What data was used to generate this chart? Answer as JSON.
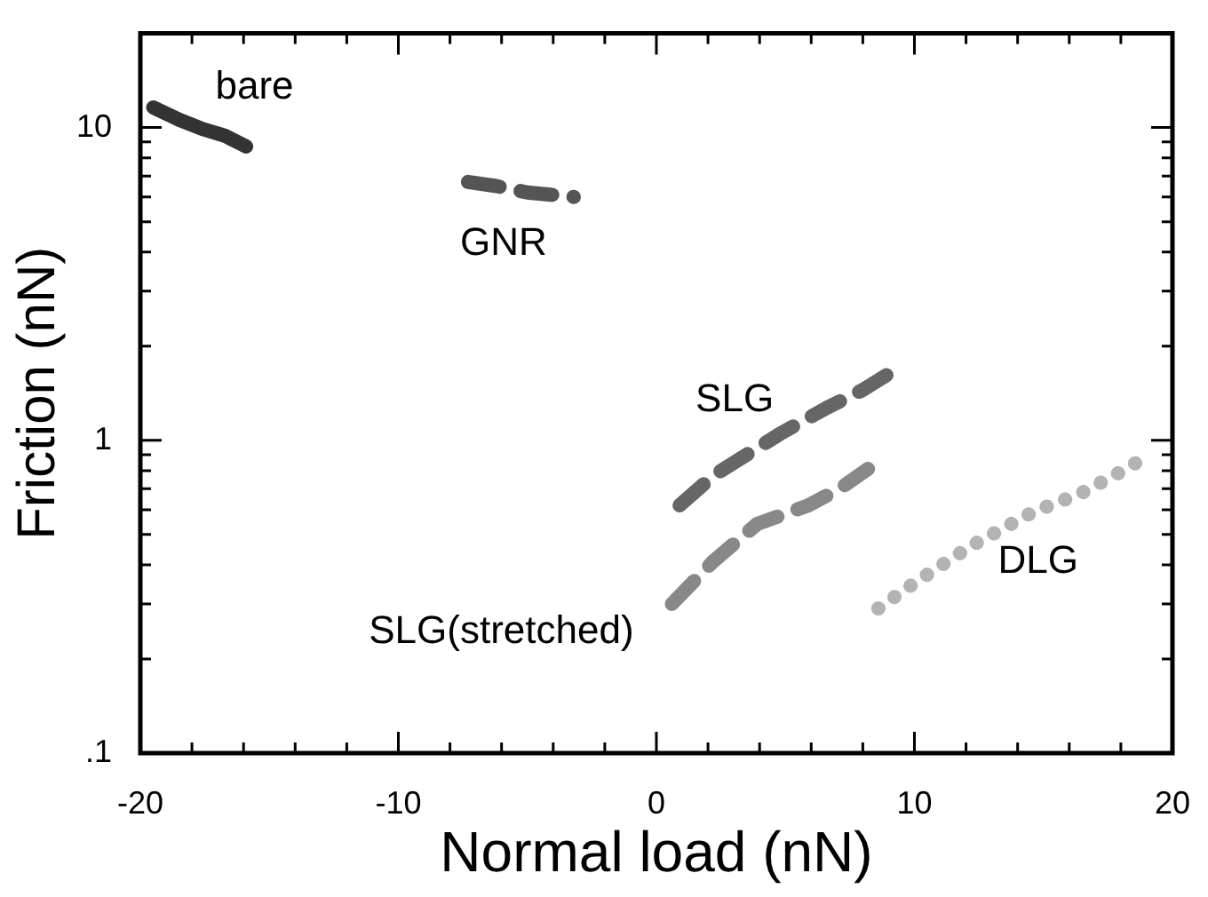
{
  "chart_data": {
    "type": "line",
    "xlabel": "Normal load (nN)",
    "ylabel": "Friction (nN)",
    "log": "y",
    "grid": false,
    "legend": false,
    "marker": "none",
    "xlim": [
      -20,
      20
    ],
    "ylim": [
      0.1,
      20
    ],
    "xticks": [
      -20,
      {
        "value": -18,
        "label": null
      },
      {
        "value": -16,
        "label": null
      },
      {
        "value": -14,
        "label": null
      },
      {
        "value": -12,
        "label": null
      },
      -10,
      {
        "value": -8,
        "label": null
      },
      {
        "value": -6,
        "label": null
      },
      {
        "value": -4,
        "label": null
      },
      {
        "value": -2,
        "label": null
      },
      0,
      {
        "value": 2,
        "label": null
      },
      {
        "value": 4,
        "label": null
      },
      {
        "value": 6,
        "label": null
      },
      {
        "value": 8,
        "label": null
      },
      10,
      {
        "value": 12,
        "label": null
      },
      {
        "value": 14,
        "label": null
      },
      {
        "value": 16,
        "label": null
      },
      {
        "value": 18,
        "label": null
      },
      20
    ],
    "yticks": [
      {
        "value": 0.1,
        "label": ".1"
      },
      {
        "value": 0.2,
        "label": null
      },
      {
        "value": 0.3,
        "label": null
      },
      {
        "value": 0.4,
        "label": null
      },
      {
        "value": 0.5,
        "label": null
      },
      {
        "value": 0.6,
        "label": null
      },
      {
        "value": 0.7,
        "label": null
      },
      {
        "value": 0.8,
        "label": null
      },
      {
        "value": 0.9,
        "label": null
      },
      1,
      {
        "value": 2,
        "label": null
      },
      {
        "value": 3,
        "label": null
      },
      {
        "value": 4,
        "label": null
      },
      {
        "value": 5,
        "label": null
      },
      {
        "value": 6,
        "label": null
      },
      {
        "value": 7,
        "label": null
      },
      {
        "value": 8,
        "label": null
      },
      {
        "value": 9,
        "label": null
      },
      10
    ],
    "series": [
      {
        "name": "bare",
        "color": "#333333",
        "line_style": "solid",
        "x": [
          -19.5,
          -18.5,
          -17.6,
          -16.7,
          -15.9
        ],
        "values": [
          11.6,
          10.6,
          9.9,
          9.4,
          8.7
        ]
      },
      {
        "name": "GNR",
        "color": "#555555",
        "line_style": "dashed",
        "x": [
          -7.3,
          -6.2,
          -5.0,
          -4.1,
          -3.2
        ],
        "values": [
          6.7,
          6.5,
          6.2,
          6.1,
          6.0
        ]
      },
      {
        "name": "SLG",
        "color": "#666666",
        "line_style": "dashed",
        "x": [
          0.9,
          2.2,
          3.5,
          4.8,
          6.6,
          8.0,
          9.2
        ],
        "values": [
          0.62,
          0.77,
          0.9,
          1.05,
          1.27,
          1.45,
          1.67
        ]
      },
      {
        "name": "SLG(stretched)",
        "color": "#888888",
        "line_style": "dashed",
        "x": [
          0.6,
          2.2,
          3.9,
          5.9,
          7.1,
          8.2
        ],
        "values": [
          0.3,
          0.41,
          0.54,
          0.62,
          0.7,
          0.81
        ]
      },
      {
        "name": "DLG",
        "color": "#b3b3b3",
        "line_style": "dotted",
        "x": [
          8.6,
          10.0,
          12.2,
          14.6,
          16.5,
          18.2,
          19.0
        ],
        "values": [
          0.29,
          0.35,
          0.46,
          0.59,
          0.68,
          0.81,
          0.89
        ]
      }
    ]
  }
}
